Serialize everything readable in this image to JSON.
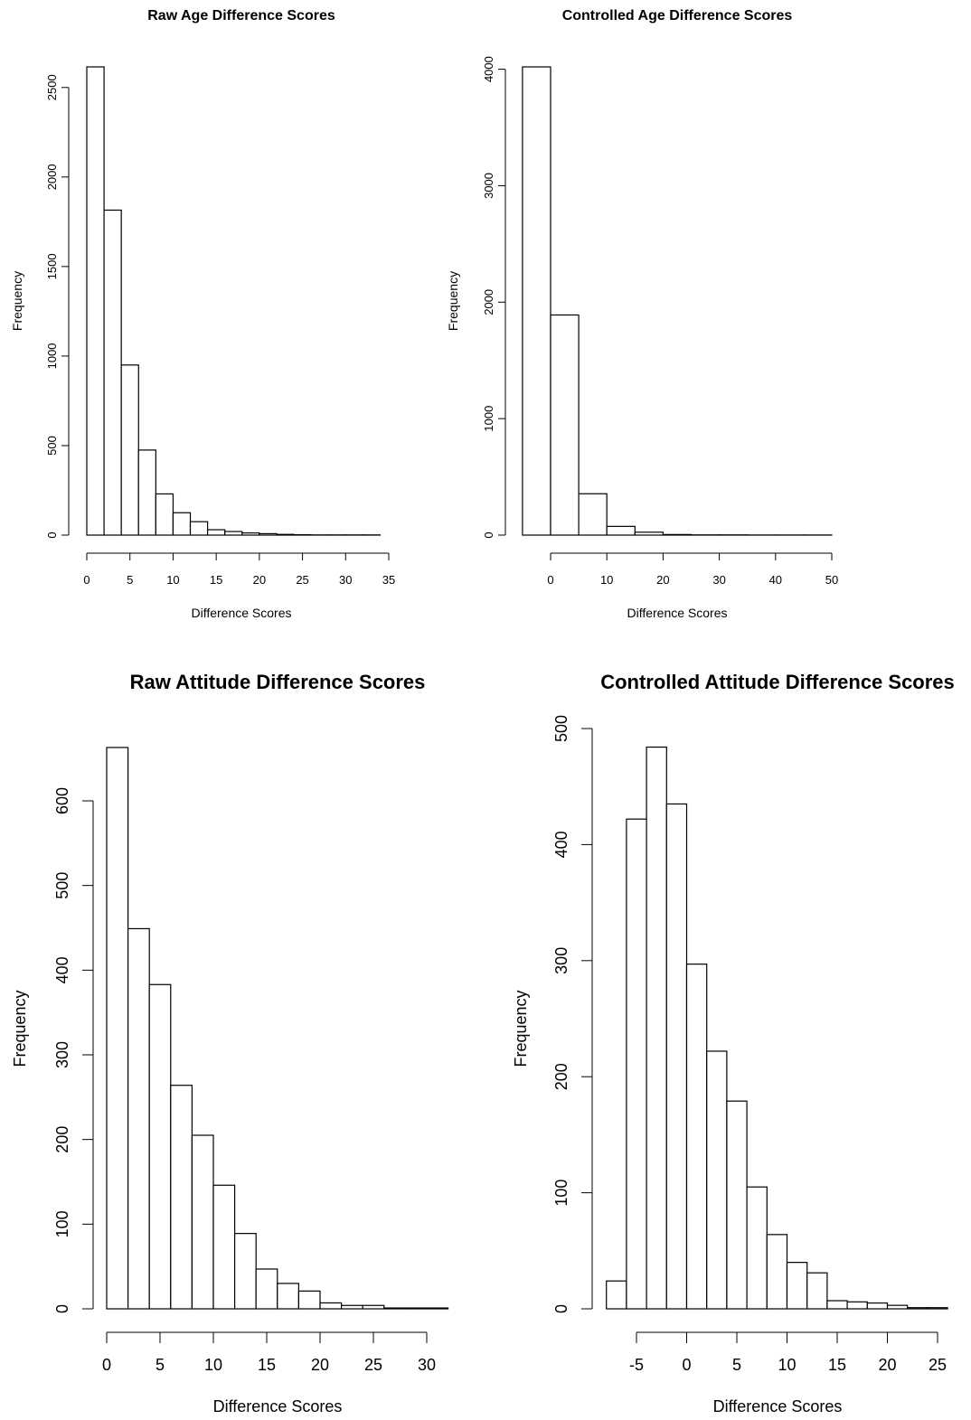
{
  "chart_data": [
    {
      "type": "bar",
      "title": "Raw Age Difference Scores",
      "xlabel": "Difference Scores",
      "ylabel": "Frequency",
      "bin_edges": [
        0,
        2,
        4,
        6,
        8,
        10,
        12,
        14,
        16,
        18,
        20,
        22,
        24,
        26,
        28,
        30,
        32,
        34,
        36
      ],
      "values": [
        2615,
        1815,
        950,
        475,
        230,
        125,
        75,
        30,
        20,
        12,
        8,
        4,
        2,
        1,
        1,
        1,
        1,
        0
      ],
      "xticks": [
        0,
        5,
        10,
        15,
        20,
        25,
        30,
        35
      ],
      "yticks": [
        0,
        500,
        1000,
        1500,
        2000,
        2500
      ],
      "xlim": [
        0,
        35
      ],
      "ylim": [
        0,
        2615
      ],
      "grid": false
    },
    {
      "type": "bar",
      "title": "Controlled Age Difference Scores",
      "xlabel": "Difference Scores",
      "ylabel": "Frequency",
      "bin_edges": [
        -5,
        0,
        5,
        10,
        15,
        20,
        25,
        30,
        35,
        40,
        45,
        50
      ],
      "values": [
        4020,
        1890,
        355,
        75,
        25,
        5,
        2,
        2,
        1,
        1,
        1
      ],
      "xticks": [
        0,
        10,
        20,
        30,
        40,
        50
      ],
      "yticks": [
        0,
        1000,
        2000,
        3000,
        4000
      ],
      "xlim": [
        0,
        50
      ],
      "ylim": [
        0,
        4020
      ],
      "grid": false
    },
    {
      "type": "bar",
      "title": "Raw Attitude Difference Scores",
      "xlabel": "Difference Scores",
      "ylabel": "Frequency",
      "bin_edges": [
        0,
        2,
        4,
        6,
        8,
        10,
        12,
        14,
        16,
        18,
        20,
        22,
        24,
        26,
        28,
        30,
        32
      ],
      "values": [
        663,
        449,
        383,
        264,
        205,
        146,
        89,
        47,
        30,
        21,
        7,
        4,
        4,
        1,
        1,
        1
      ],
      "xticks": [
        0,
        5,
        10,
        15,
        20,
        25,
        30
      ],
      "yticks": [
        0,
        100,
        200,
        300,
        400,
        500,
        600
      ],
      "xlim": [
        0,
        30
      ],
      "ylim": [
        0,
        600
      ],
      "grid": false
    },
    {
      "type": "bar",
      "title": "Controlled Attitude Difference Scores",
      "xlabel": "Difference Scores",
      "ylabel": "Frequency",
      "bin_edges": [
        -8,
        -6,
        -4,
        -2,
        0,
        2,
        4,
        6,
        8,
        10,
        12,
        14,
        16,
        18,
        20,
        22,
        24,
        26
      ],
      "values": [
        24,
        422,
        484,
        435,
        297,
        222,
        179,
        105,
        64,
        40,
        31,
        7,
        6,
        5,
        3,
        1,
        1
      ],
      "xticks": [
        -5,
        0,
        5,
        10,
        15,
        20,
        25
      ],
      "yticks": [
        0,
        100,
        200,
        300,
        400,
        500
      ],
      "xlim": [
        -5,
        25
      ],
      "ylim": [
        0,
        500
      ],
      "grid": false
    }
  ]
}
